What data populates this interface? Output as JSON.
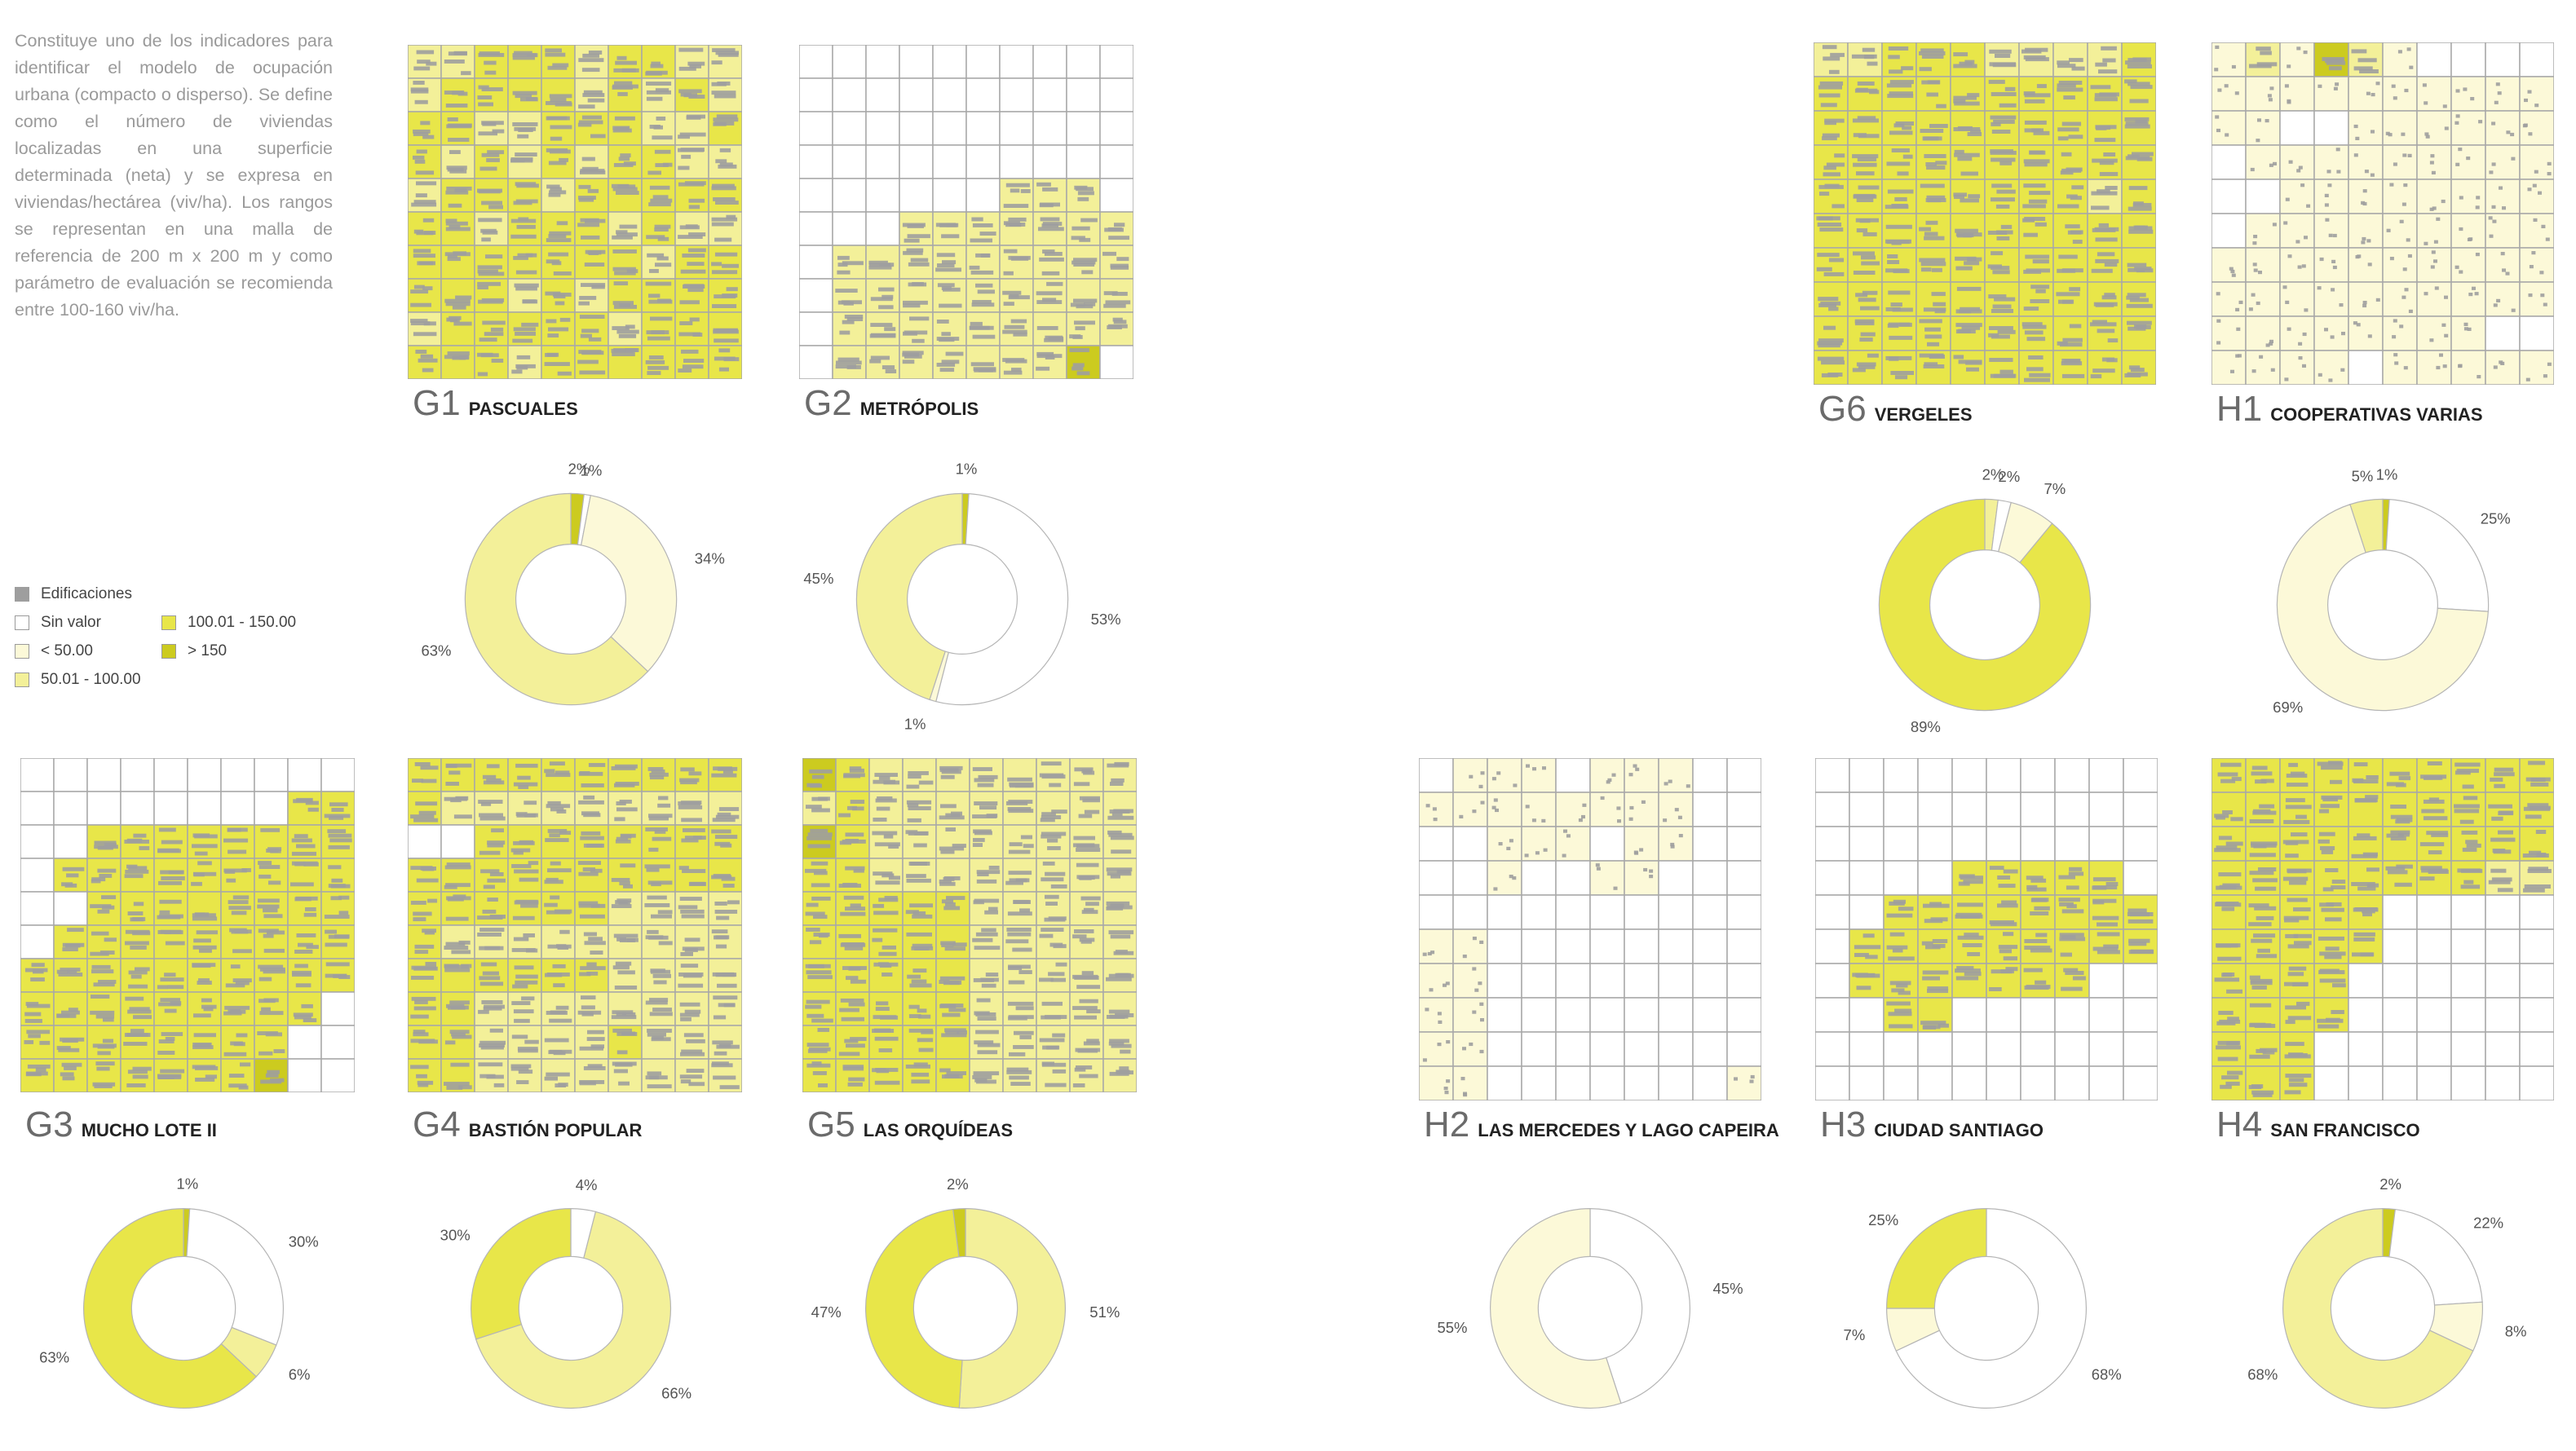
{
  "intro_text": "Constituye uno de los indicadores para identificar el modelo de ocupación urbana (compacto o disperso). Se define como el número de viviendas localizadas en una superficie determinada (neta) y se expresa en viviendas/hectárea (viv/ha). Los rangos se representan en una malla de referencia de 200 m x 200 m y como parámetro de evaluación se recomienda entre 100-160 viv/ha.",
  "colors": {
    "edificaciones": "#9e9e9e",
    "sin_valor": "#ffffff",
    "lt50": "#fcf9d8",
    "r50_100": "#f3f099",
    "r100_150": "#e8e649",
    "gt150": "#cccb1f",
    "grid": "#a8a8a8"
  },
  "legend": [
    {
      "key": "edificaciones",
      "label": "Edificaciones"
    },
    {
      "key": "sin_valor",
      "label": "Sin valor"
    },
    {
      "key": "lt50",
      "label": "< 50.00"
    },
    {
      "key": "r50_100",
      "label": "50.01 - 100.00"
    },
    {
      "key": "r100_150",
      "label": "100.01 - 150.00"
    },
    {
      "key": "gt150",
      "label": "> 150"
    }
  ],
  "chart_data": [
    {
      "type": "pie",
      "code": "G1",
      "title": "PASCUALES",
      "categories": [
        "> 150",
        "Sin valor",
        "< 50.00",
        "50.01 - 100.00"
      ],
      "values": [
        2,
        1,
        34,
        63
      ],
      "labels": [
        "2%",
        "1%",
        "34%",
        "63%"
      ]
    },
    {
      "type": "pie",
      "code": "G2",
      "title": "METRÓPOLIS",
      "categories": [
        "> 150",
        "Sin valor",
        "< 50.00",
        "50.01 - 100.00"
      ],
      "values": [
        1,
        53,
        1,
        45
      ],
      "labels": [
        "1%",
        "53%",
        "1%",
        "45%"
      ]
    },
    {
      "type": "pie",
      "code": "G6",
      "title": "VERGELES",
      "categories": [
        "50.01 - 100.00",
        "Sin valor",
        "< 50.00",
        "100.01 - 150.00"
      ],
      "values": [
        2,
        2,
        7,
        89
      ],
      "labels": [
        "2%",
        "2%",
        "7%",
        "89%"
      ]
    },
    {
      "type": "pie",
      "code": "H1",
      "title": "COOPERATIVAS VARIAS",
      "categories": [
        "> 150",
        "Sin valor",
        "< 50.00",
        "50.01 - 100.00"
      ],
      "values": [
        1,
        25,
        69,
        5
      ],
      "labels": [
        "1%",
        "25%",
        "69%",
        "5%"
      ]
    },
    {
      "type": "pie",
      "code": "G3",
      "title": "MUCHO LOTE II",
      "categories": [
        "> 150",
        "Sin valor",
        "50.01 - 100.00",
        "100.01 - 150.00"
      ],
      "values": [
        1,
        30,
        6,
        63
      ],
      "labels": [
        "1%",
        "30%",
        "6%",
        "63%"
      ]
    },
    {
      "type": "pie",
      "code": "G4",
      "title": "BASTIÓN POPULAR",
      "categories": [
        "Sin valor",
        "50.01 - 100.00",
        "100.01 - 150.00"
      ],
      "values": [
        4,
        66,
        30
      ],
      "labels": [
        "4%",
        "66%",
        "30%"
      ]
    },
    {
      "type": "pie",
      "code": "G5",
      "title": "LAS ORQUÍDEAS",
      "categories": [
        "50.01 - 100.00",
        "100.01 - 150.00",
        "> 150"
      ],
      "values": [
        51,
        47,
        2
      ],
      "labels": [
        "51%",
        "47%",
        "2%"
      ]
    },
    {
      "type": "pie",
      "code": "H2",
      "title": "LAS MERCEDES Y LAGO CAPEIRA",
      "categories": [
        "Sin valor",
        "< 50.00"
      ],
      "values": [
        45,
        55
      ],
      "labels": [
        "45%",
        "55%"
      ]
    },
    {
      "type": "pie",
      "code": "H3",
      "title": "CIUDAD SANTIAGO",
      "categories": [
        "Sin valor",
        "< 50.00",
        "100.01 - 150.00"
      ],
      "values": [
        68,
        7,
        25
      ],
      "labels": [
        "68%",
        "7%",
        "25%"
      ]
    },
    {
      "type": "pie",
      "code": "H4",
      "title": "SAN FRANCISCO",
      "categories": [
        "> 150",
        "Sin valor",
        "< 50.00",
        "50.01 - 100.00"
      ],
      "values": [
        2,
        22,
        8,
        68
      ],
      "labels": [
        "2%",
        "22%",
        "8%",
        "68%"
      ]
    }
  ]
}
